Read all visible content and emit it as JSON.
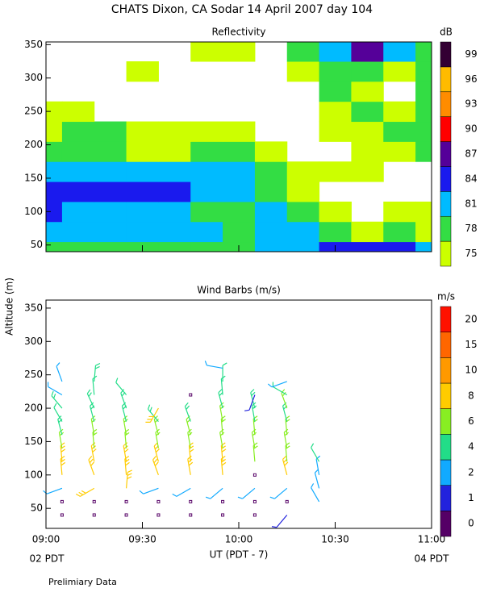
{
  "title": "CHATS Dixon, CA  Sodar  14 April 2007  day 104",
  "y_label": "Altitude (m)",
  "x_label": "UT  (PDT - 7)",
  "x_notes": [
    "02 PDT",
    "04 PDT"
  ],
  "footnote": "Prelimiary Data",
  "chart_data": [
    {
      "type": "contour",
      "title": "Reflectivity",
      "x": [
        9.0,
        9.1667,
        9.3333,
        9.5,
        9.6667,
        9.8333,
        10.0,
        10.1667,
        10.3333,
        10.5,
        10.6667,
        10.8333,
        11.0
      ],
      "y": [
        40,
        70,
        100,
        130,
        160,
        190,
        220,
        250,
        280,
        310,
        340
      ],
      "values": [
        [
          78,
          78,
          78,
          78,
          78,
          78,
          78,
          81,
          81,
          84,
          84,
          84,
          81
        ],
        [
          81,
          81,
          81,
          81,
          81,
          81,
          78,
          81,
          81,
          78,
          75,
          78,
          75
        ],
        [
          84,
          81,
          81,
          81,
          81,
          78,
          78,
          81,
          78,
          75,
          null,
          75,
          75
        ],
        [
          84,
          84,
          84,
          84,
          84,
          81,
          81,
          78,
          75,
          null,
          null,
          null,
          null
        ],
        [
          81,
          81,
          81,
          81,
          81,
          81,
          81,
          78,
          75,
          75,
          75,
          null,
          null
        ],
        [
          78,
          78,
          78,
          75,
          75,
          78,
          78,
          75,
          null,
          null,
          75,
          75,
          78
        ],
        [
          75,
          78,
          78,
          75,
          75,
          75,
          75,
          null,
          null,
          75,
          75,
          78,
          78
        ],
        [
          75,
          75,
          null,
          null,
          null,
          null,
          null,
          null,
          null,
          75,
          78,
          75,
          78
        ],
        [
          null,
          null,
          null,
          null,
          null,
          null,
          null,
          null,
          null,
          78,
          75,
          null,
          78
        ],
        [
          null,
          null,
          null,
          75,
          null,
          null,
          null,
          null,
          75,
          78,
          78,
          75,
          78
        ],
        [
          null,
          null,
          null,
          null,
          null,
          75,
          75,
          null,
          78,
          81,
          87,
          81,
          78
        ]
      ],
      "xlim": [
        9,
        11
      ],
      "xticks": [
        9,
        9.5,
        10,
        10.5,
        11
      ],
      "ylim": [
        40,
        354
      ],
      "yticks": [
        50,
        100,
        150,
        200,
        250,
        300,
        350
      ],
      "colorbar_units": "dB",
      "levels": [
        75,
        78,
        81,
        84,
        87,
        90,
        93,
        96,
        99
      ],
      "colors": [
        "#ccff00",
        "#33dd44",
        "#00bbff",
        "#1a1aee",
        "#550099",
        "#ff0000",
        "#ff8c00",
        "#ffbb00",
        "#330033"
      ]
    },
    {
      "type": "barbs",
      "title": "Wind Barbs (m/s)",
      "profiles": [
        {
          "x": 9.0833,
          "altitudes": [
            40,
            60,
            80,
            100,
            120,
            140,
            160,
            180,
            200,
            220,
            240
          ],
          "speed": [
            0,
            0,
            3,
            8,
            8,
            7,
            5,
            4,
            5,
            3,
            3
          ],
          "direction": [
            0,
            0,
            250,
            355,
            355,
            350,
            345,
            330,
            320,
            300,
            340
          ]
        },
        {
          "x": 9.25,
          "altitudes": [
            40,
            60,
            80,
            100,
            120,
            140,
            160,
            180,
            200,
            220,
            240
          ],
          "speed": [
            0,
            0,
            9,
            8,
            8,
            7,
            6,
            5,
            5,
            4,
            5
          ],
          "direction": [
            0,
            0,
            240,
            340,
            350,
            355,
            350,
            345,
            335,
            355,
            5
          ]
        },
        {
          "x": 9.4167,
          "altitudes": [
            40,
            60,
            80,
            100,
            120,
            140,
            160,
            180,
            200,
            220
          ],
          "speed": [
            0,
            0,
            8,
            8,
            8,
            7,
            6,
            5,
            5,
            4
          ],
          "direction": [
            0,
            0,
            5,
            355,
            350,
            355,
            350,
            345,
            340,
            320
          ]
        },
        {
          "x": 9.5833,
          "altitudes": [
            40,
            60,
            80,
            100,
            120,
            140,
            160,
            180,
            200
          ],
          "speed": [
            0,
            0,
            3,
            8,
            8,
            7,
            6,
            5,
            9
          ],
          "direction": [
            0,
            0,
            250,
            340,
            345,
            350,
            345,
            320,
            210
          ]
        },
        {
          "x": 9.75,
          "altitudes": [
            40,
            60,
            80,
            100,
            120,
            140,
            160,
            180,
            220
          ],
          "speed": [
            0,
            0,
            3,
            8,
            8,
            7,
            6,
            5,
            0
          ],
          "direction": [
            0,
            0,
            240,
            350,
            355,
            350,
            345,
            340,
            0
          ]
        },
        {
          "x": 9.9167,
          "altitudes": [
            40,
            60,
            80,
            100,
            120,
            140,
            160,
            180,
            200,
            220,
            240,
            260
          ],
          "speed": [
            0,
            0,
            2,
            8,
            8,
            7,
            6,
            6,
            5,
            4,
            4,
            3
          ],
          "direction": [
            0,
            0,
            230,
            355,
            355,
            350,
            355,
            350,
            345,
            355,
            0,
            280
          ]
        },
        {
          "x": 10.0833,
          "altitudes": [
            40,
            60,
            80,
            100,
            120,
            140,
            160,
            180,
            200,
            220
          ],
          "speed": [
            0,
            0,
            2,
            0,
            7,
            7,
            6,
            5,
            5,
            1
          ],
          "direction": [
            0,
            0,
            230,
            0,
            355,
            350,
            355,
            350,
            345,
            200
          ]
        },
        {
          "x": 10.25,
          "altitudes": [
            40,
            60,
            80,
            100,
            120,
            140,
            160,
            180,
            200,
            220,
            240
          ],
          "speed": [
            1,
            0,
            2,
            8,
            7,
            7,
            6,
            5,
            6,
            4,
            3
          ],
          "direction": [
            220,
            0,
            230,
            345,
            355,
            350,
            355,
            345,
            340,
            300,
            250
          ]
        },
        {
          "x": 10.4167,
          "altitudes": [
            60,
            80,
            100,
            120
          ],
          "speed": [
            3,
            3,
            3,
            4
          ],
          "direction": [
            330,
            345,
            350,
            330
          ]
        }
      ],
      "xlim": [
        9,
        11
      ],
      "xticks": [
        {
          "value": 9,
          "label": "09:00"
        },
        {
          "value": 9.5,
          "label": "09:30"
        },
        {
          "value": 10,
          "label": "10:00"
        },
        {
          "value": 10.5,
          "label": "10:30"
        },
        {
          "value": 11,
          "label": "11:00"
        }
      ],
      "ylim": [
        20,
        362
      ],
      "yticks": [
        50,
        100,
        150,
        200,
        250,
        300,
        350
      ],
      "colorbar_units": "m/s",
      "levels": [
        0,
        1,
        2,
        4,
        6,
        8,
        10,
        15,
        20
      ],
      "colors": [
        "#550066",
        "#2222dd",
        "#11aaff",
        "#22dd88",
        "#88ee22",
        "#ffcc00",
        "#ff9900",
        "#ff6600",
        "#ff1100"
      ]
    }
  ]
}
